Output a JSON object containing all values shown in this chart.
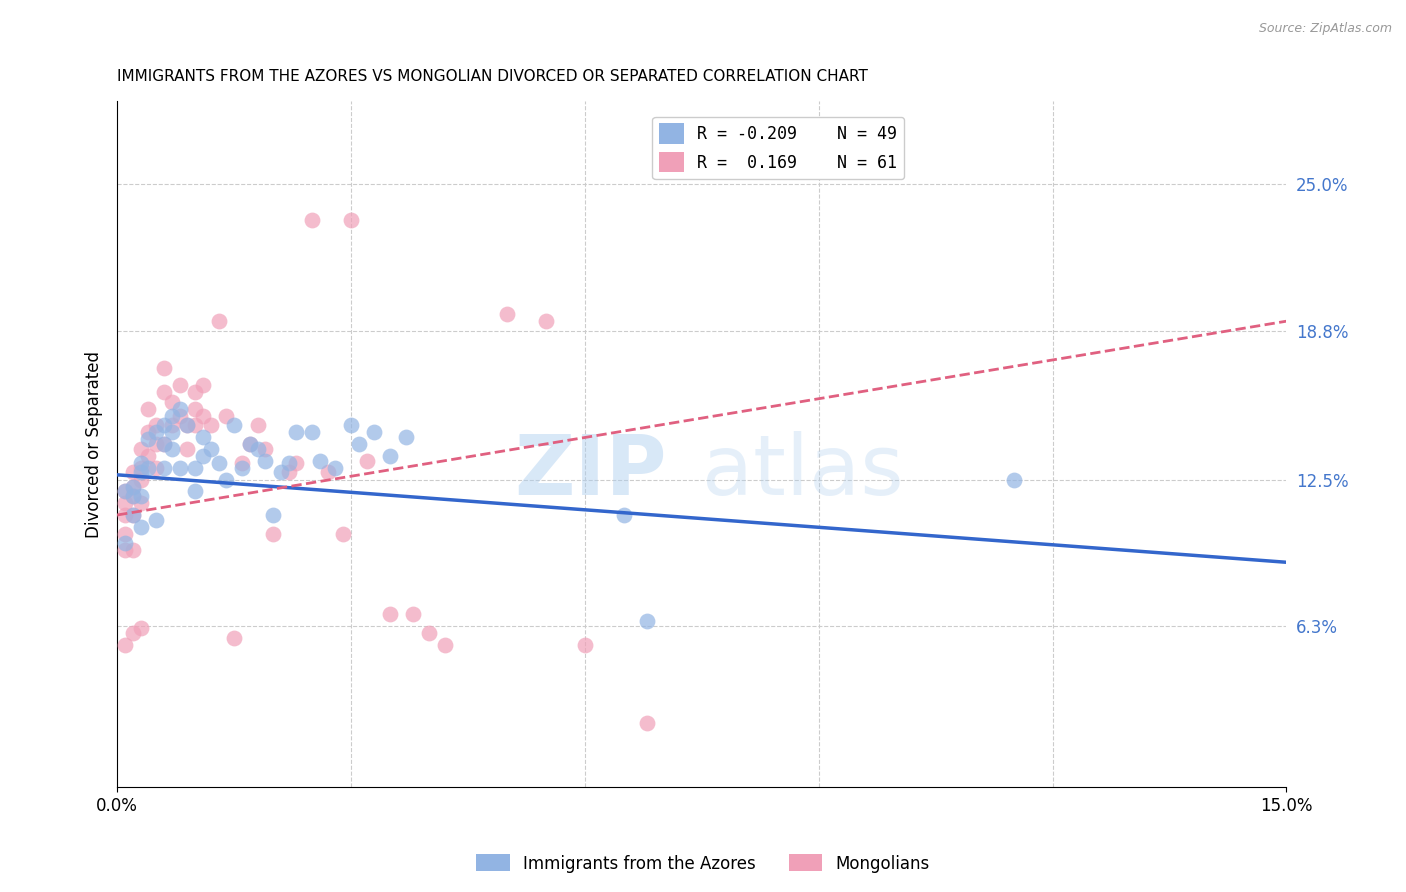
{
  "title": "IMMIGRANTS FROM THE AZORES VS MONGOLIAN DIVORCED OR SEPARATED CORRELATION CHART",
  "source": "Source: ZipAtlas.com",
  "xlabel_blue": "Immigrants from the Azores",
  "xlabel_pink": "Mongolians",
  "ylabel": "Divorced or Separated",
  "xlim": [
    0.0,
    0.15
  ],
  "ylim": [
    -0.005,
    0.285
  ],
  "yticks_right": [
    0.063,
    0.125,
    0.188,
    0.25
  ],
  "ytick_labels_right": [
    "6.3%",
    "12.5%",
    "18.8%",
    "25.0%"
  ],
  "legend_r_blue": "-0.209",
  "legend_n_blue": "49",
  "legend_r_pink": " 0.169",
  "legend_n_pink": "61",
  "blue_color": "#92B4E3",
  "pink_color": "#F0A0B8",
  "trend_blue_color": "#3366CC",
  "trend_pink_color": "#E06080",
  "watermark_zip": "ZIP",
  "watermark_atlas": "atlas",
  "blue_points_x": [
    0.001,
    0.001,
    0.002,
    0.002,
    0.002,
    0.003,
    0.003,
    0.003,
    0.003,
    0.004,
    0.004,
    0.005,
    0.005,
    0.006,
    0.006,
    0.006,
    0.007,
    0.007,
    0.007,
    0.008,
    0.008,
    0.009,
    0.01,
    0.01,
    0.011,
    0.011,
    0.012,
    0.013,
    0.014,
    0.015,
    0.016,
    0.017,
    0.018,
    0.019,
    0.02,
    0.021,
    0.022,
    0.023,
    0.025,
    0.026,
    0.028,
    0.03,
    0.031,
    0.033,
    0.035,
    0.037,
    0.065,
    0.068,
    0.115
  ],
  "blue_points_y": [
    0.12,
    0.098,
    0.122,
    0.118,
    0.11,
    0.132,
    0.128,
    0.118,
    0.105,
    0.142,
    0.13,
    0.145,
    0.108,
    0.148,
    0.14,
    0.13,
    0.152,
    0.145,
    0.138,
    0.155,
    0.13,
    0.148,
    0.13,
    0.12,
    0.143,
    0.135,
    0.138,
    0.132,
    0.125,
    0.148,
    0.13,
    0.14,
    0.138,
    0.133,
    0.11,
    0.128,
    0.132,
    0.145,
    0.145,
    0.133,
    0.13,
    0.148,
    0.14,
    0.145,
    0.135,
    0.143,
    0.11,
    0.065,
    0.125
  ],
  "pink_points_x": [
    0.001,
    0.001,
    0.001,
    0.001,
    0.001,
    0.001,
    0.002,
    0.002,
    0.002,
    0.002,
    0.002,
    0.002,
    0.003,
    0.003,
    0.003,
    0.003,
    0.003,
    0.004,
    0.004,
    0.004,
    0.005,
    0.005,
    0.005,
    0.006,
    0.006,
    0.006,
    0.007,
    0.007,
    0.008,
    0.008,
    0.009,
    0.009,
    0.01,
    0.01,
    0.01,
    0.011,
    0.011,
    0.012,
    0.013,
    0.014,
    0.015,
    0.016,
    0.017,
    0.018,
    0.019,
    0.02,
    0.022,
    0.023,
    0.025,
    0.027,
    0.029,
    0.03,
    0.032,
    0.035,
    0.038,
    0.04,
    0.042,
    0.05,
    0.055,
    0.06,
    0.068
  ],
  "pink_points_y": [
    0.12,
    0.115,
    0.11,
    0.102,
    0.095,
    0.055,
    0.128,
    0.122,
    0.118,
    0.11,
    0.095,
    0.06,
    0.138,
    0.13,
    0.125,
    0.115,
    0.062,
    0.155,
    0.145,
    0.135,
    0.148,
    0.14,
    0.13,
    0.172,
    0.162,
    0.14,
    0.158,
    0.148,
    0.165,
    0.152,
    0.148,
    0.138,
    0.162,
    0.155,
    0.148,
    0.165,
    0.152,
    0.148,
    0.192,
    0.152,
    0.058,
    0.132,
    0.14,
    0.148,
    0.138,
    0.102,
    0.128,
    0.132,
    0.235,
    0.128,
    0.102,
    0.235,
    0.133,
    0.068,
    0.068,
    0.06,
    0.055,
    0.195,
    0.192,
    0.055,
    0.022
  ],
  "blue_trend_x0": 0.0,
  "blue_trend_y0": 0.127,
  "blue_trend_x1": 0.15,
  "blue_trend_y1": 0.09,
  "pink_trend_x0": 0.0,
  "pink_trend_y0": 0.11,
  "pink_trend_x1": 0.15,
  "pink_trend_y1": 0.192
}
